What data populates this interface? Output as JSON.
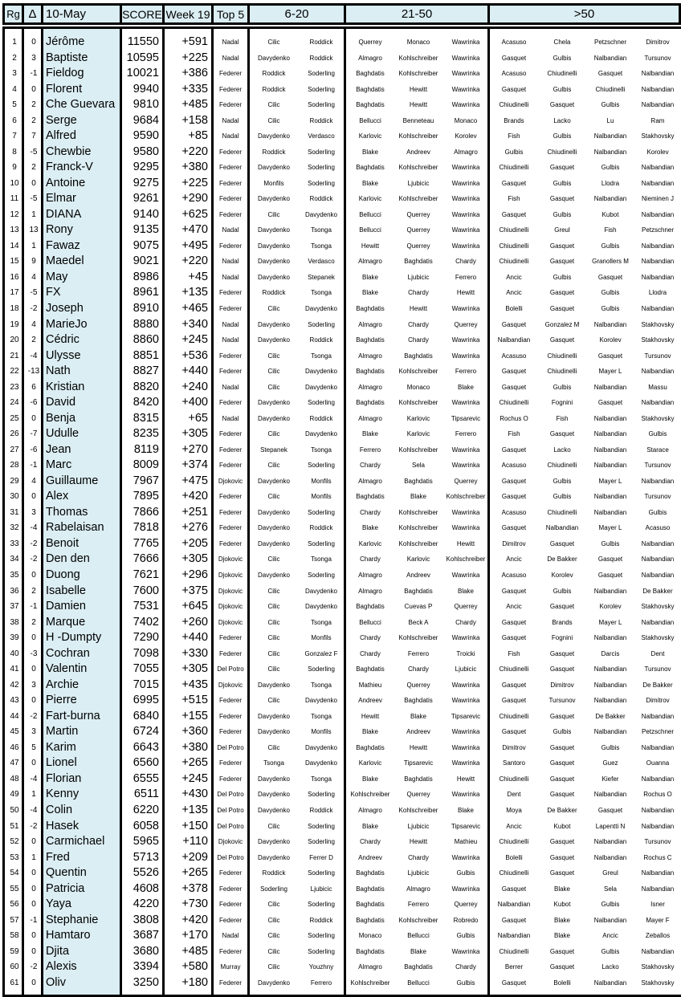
{
  "header": {
    "rank": "Rg",
    "delta": "Δ",
    "date": "10-May",
    "score": "SCORE",
    "week": "Week 19",
    "top5": "Top 5",
    "group_6_20": "6-20",
    "group_21_50": "21-50",
    "group_50_plus": ">50"
  },
  "colors": {
    "header_bg": "#dbeef3",
    "name_col_bg": "#dbeef3",
    "border": "#000000"
  },
  "rows": [
    [
      "1",
      "0",
      "Jérôme",
      "11550",
      "+591",
      "Nadal",
      "Cilic",
      "Roddick",
      "Querrey",
      "Monaco",
      "Wawrinka",
      "Acasuso",
      "Chela",
      "Petzschner",
      "Dimitrov"
    ],
    [
      "2",
      "3",
      "Baptiste",
      "10595",
      "+225",
      "Nadal",
      "Davydenko",
      "Roddick",
      "Almagro",
      "Kohlschreiber",
      "Wawrinka",
      "Gasquet",
      "Gulbis",
      "Nalbandian",
      "Tursunov"
    ],
    [
      "3",
      "-1",
      "Fieldog",
      "10021",
      "+386",
      "Federer",
      "Roddick",
      "Soderling",
      "Baghdatis",
      "Kohlschreiber",
      "Wawrinka",
      "Acasuso",
      "Chiudinelli",
      "Gasquet",
      "Nalbandian"
    ],
    [
      "4",
      "0",
      "Florent",
      "9940",
      "+335",
      "Federer",
      "Roddick",
      "Soderling",
      "Baghdatis",
      "Hewitt",
      "Wawrinka",
      "Gasquet",
      "Gulbis",
      "Chiudinelli",
      "Nalbandian"
    ],
    [
      "5",
      "2",
      "Che Guevara",
      "9810",
      "+485",
      "Federer",
      "Cilic",
      "Soderling",
      "Baghdatis",
      "Hewitt",
      "Wawrinka",
      "Chiudinelli",
      "Gasquet",
      "Gulbis",
      "Nalbandian"
    ],
    [
      "6",
      "2",
      "Serge",
      "9684",
      "+158",
      "Nadal",
      "Cilic",
      "Roddick",
      "Bellucci",
      "Benneteau",
      "Monaco",
      "Brands",
      "Lacko",
      "Lu",
      "Ram"
    ],
    [
      "7",
      "7",
      "Alfred",
      "9590",
      "+85",
      "Nadal",
      "Davydenko",
      "Verdasco",
      "Karlovic",
      "Kohlschreiber",
      "Korolev",
      "Fish",
      "Gulbis",
      "Nalbandian",
      "Stakhovsky"
    ],
    [
      "8",
      "-5",
      "Chewbie",
      "9580",
      "+220",
      "Federer",
      "Roddick",
      "Soderling",
      "Blake",
      "Andreev",
      "Almagro",
      "Gulbis",
      "Chiudinelli",
      "Nalbandian",
      "Korolev"
    ],
    [
      "9",
      "2",
      "Franck-V",
      "9295",
      "+380",
      "Federer",
      "Davydenko",
      "Soderling",
      "Baghdatis",
      "Kohlschreiber",
      "Wawrinka",
      "Chiudinelli",
      "Gasquet",
      "Gulbis",
      "Nalbandian"
    ],
    [
      "10",
      "0",
      "Antoine",
      "9275",
      "+225",
      "Federer",
      "Monfils",
      "Soderling",
      "Blake",
      "Ljubicic",
      "Wawrinka",
      "Gasquet",
      "Gulbis",
      "Llodra",
      "Nalbandian"
    ],
    [
      "11",
      "-5",
      "Elmar",
      "9261",
      "+290",
      "Federer",
      "Davydenko",
      "Roddick",
      "Karlovic",
      "Kohlschreiber",
      "Wawrinka",
      "Fish",
      "Gasquet",
      "Nalbandian",
      "Nieminen J"
    ],
    [
      "12",
      "1",
      "DIANA",
      "9140",
      "+625",
      "Federer",
      "Cilic",
      "Davydenko",
      "Bellucci",
      "Querrey",
      "Wawrinka",
      "Gasquet",
      "Gulbis",
      "Kubot",
      "Nalbandian"
    ],
    [
      "13",
      "13",
      "Rony",
      "9135",
      "+470",
      "Nadal",
      "Davydenko",
      "Tsonga",
      "Bellucci",
      "Querrey",
      "Wawrinka",
      "Chiudinelli",
      "Greul",
      "Fish",
      "Petzschner"
    ],
    [
      "14",
      "1",
      "Fawaz",
      "9075",
      "+495",
      "Federer",
      "Davydenko",
      "Tsonga",
      "Hewitt",
      "Querrey",
      "Wawrinka",
      "Chiudinelli",
      "Gasquet",
      "Gulbis",
      "Nalbandian"
    ],
    [
      "15",
      "9",
      "Maedel",
      "9021",
      "+220",
      "Nadal",
      "Davydenko",
      "Verdasco",
      "Almagro",
      "Baghdatis",
      "Chardy",
      "Chiudinelli",
      "Gasquet",
      "Granollers M",
      "Nalbandian"
    ],
    [
      "16",
      "4",
      "May",
      "8986",
      "+45",
      "Nadal",
      "Davydenko",
      "Stepanek",
      "Blake",
      "Ljubicic",
      "Ferrero",
      "Ancic",
      "Gulbis",
      "Gasquet",
      "Nalbandian"
    ],
    [
      "17",
      "-5",
      "FX",
      "8961",
      "+135",
      "Federer",
      "Roddick",
      "Tsonga",
      "Blake",
      "Chardy",
      "Hewitt",
      "Ancic",
      "Gasquet",
      "Gulbis",
      "Llodra"
    ],
    [
      "18",
      "-2",
      "Joseph",
      "8910",
      "+465",
      "Federer",
      "Cilic",
      "Davydenko",
      "Baghdatis",
      "Hewitt",
      "Wawrinka",
      "Bolelli",
      "Gasquet",
      "Gulbis",
      "Nalbandian"
    ],
    [
      "19",
      "4",
      "MarieJo",
      "8880",
      "+340",
      "Nadal",
      "Davydenko",
      "Soderling",
      "Almagro",
      "Chardy",
      "Querrey",
      "Gasquet",
      "Gonzalez M",
      "Nalbandian",
      "Stakhovsky"
    ],
    [
      "20",
      "2",
      "Cédric",
      "8860",
      "+245",
      "Nadal",
      "Davydenko",
      "Roddick",
      "Baghdatis",
      "Chardy",
      "Wawrinka",
      "Nalbandian",
      "Gasquet",
      "Korolev",
      "Stakhovsky"
    ],
    [
      "21",
      "-4",
      "Ulysse",
      "8851",
      "+536",
      "Federer",
      "Cilic",
      "Tsonga",
      "Almagro",
      "Baghdatis",
      "Wawrinka",
      "Acasuso",
      "Chiudinelli",
      "Gasquet",
      "Tursunov"
    ],
    [
      "22",
      "-13",
      "Nath",
      "8827",
      "+440",
      "Federer",
      "Cilic",
      "Davydenko",
      "Baghdatis",
      "Kohlschreiber",
      "Ferrero",
      "Gasquet",
      "Chiudinelli",
      "Mayer L",
      "Nalbandian"
    ],
    [
      "23",
      "6",
      "Kristian",
      "8820",
      "+240",
      "Nadal",
      "Cilic",
      "Davydenko",
      "Almagro",
      "Monaco",
      "Blake",
      "Gasquet",
      "Gulbis",
      "Nalbandian",
      "Massu"
    ],
    [
      "24",
      "-6",
      "David",
      "8420",
      "+400",
      "Federer",
      "Davydenko",
      "Soderling",
      "Baghdatis",
      "Kohlschreiber",
      "Wawrinka",
      "Chiudinelli",
      "Fognini",
      "Gasquet",
      "Nalbandian"
    ],
    [
      "25",
      "0",
      "Benja",
      "8315",
      "+65",
      "Nadal",
      "Davydenko",
      "Roddick",
      "Almagro",
      "Karlovic",
      "Tipsarevic",
      "Rochus O",
      "Fish",
      "Nalbandian",
      "Stakhovsky"
    ],
    [
      "26",
      "-7",
      "Udulle",
      "8235",
      "+305",
      "Federer",
      "Cilic",
      "Davydenko",
      "Blake",
      "Karlovic",
      "Ferrero",
      "Fish",
      "Gasquet",
      "Nalbandian",
      "Gulbis"
    ],
    [
      "27",
      "-6",
      "Jean",
      "8119",
      "+270",
      "Federer",
      "Stepanek",
      "Tsonga",
      "Ferrero",
      "Kohlschreiber",
      "Wawrinka",
      "Gasquet",
      "Lacko",
      "Nalbandian",
      "Starace"
    ],
    [
      "28",
      "-1",
      "Marc",
      "8009",
      "+374",
      "Federer",
      "Cilic",
      "Soderling",
      "Chardy",
      "Sela",
      "Wawrinka",
      "Acasuso",
      "Chiudinelli",
      "Nalbandian",
      "Tursunov"
    ],
    [
      "29",
      "4",
      "Guillaume",
      "7967",
      "+475",
      "Djokovic",
      "Davydenko",
      "Monfils",
      "Almagro",
      "Baghdatis",
      "Querrey",
      "Gasquet",
      "Gulbis",
      "Mayer L",
      "Nalbandian"
    ],
    [
      "30",
      "0",
      "Alex",
      "7895",
      "+420",
      "Federer",
      "Cilic",
      "Monfils",
      "Baghdatis",
      "Blake",
      "Kohlschreiber",
      "Gasquet",
      "Gulbis",
      "Nalbandian",
      "Tursunov"
    ],
    [
      "31",
      "3",
      "Thomas",
      "7866",
      "+251",
      "Federer",
      "Davydenko",
      "Soderling",
      "Chardy",
      "Kohlschreiber",
      "Wawrinka",
      "Acasuso",
      "Chiudinelli",
      "Nalbandian",
      "Gulbis"
    ],
    [
      "32",
      "-4",
      "Rabelaisan",
      "7818",
      "+276",
      "Federer",
      "Davydenko",
      "Roddick",
      "Blake",
      "Kohlschreiber",
      "Wawrinka",
      "Gasquet",
      "Nalbandian",
      "Mayer L",
      "Acasuso"
    ],
    [
      "33",
      "-2",
      "Benoit",
      "7765",
      "+205",
      "Federer",
      "Davydenko",
      "Soderling",
      "Karlovic",
      "Kohlschreiber",
      "Hewitt",
      "Dimitrov",
      "Gasquet",
      "Gulbis",
      "Nalbandian"
    ],
    [
      "34",
      "-2",
      "Den den",
      "7666",
      "+305",
      "Djokovic",
      "Cilic",
      "Tsonga",
      "Chardy",
      "Karlovic",
      "Kohlschreiber",
      "Ancic",
      "De Bakker",
      "Gasquet",
      "Nalbandian"
    ],
    [
      "35",
      "0",
      "Duong",
      "7621",
      "+296",
      "Djokovic",
      "Davydenko",
      "Soderling",
      "Almagro",
      "Andreev",
      "Wawrinka",
      "Acasuso",
      "Korolev",
      "Gasquet",
      "Nalbandian"
    ],
    [
      "36",
      "2",
      "Isabelle",
      "7600",
      "+375",
      "Djokovic",
      "Cilic",
      "Davydenko",
      "Almagro",
      "Baghdatis",
      "Blake",
      "Gasquet",
      "Gulbis",
      "Nalbandian",
      "De Bakker"
    ],
    [
      "37",
      "-1",
      "Damien",
      "7531",
      "+645",
      "Djokovic",
      "Cilic",
      "Davydenko",
      "Baghdatis",
      "Cuevas P",
      "Querrey",
      "Ancic",
      "Gasquet",
      "Korolev",
      "Stakhovsky"
    ],
    [
      "38",
      "2",
      "Marque",
      "7402",
      "+260",
      "Djokovic",
      "Cilic",
      "Tsonga",
      "Bellucci",
      "Beck A",
      "Chardy",
      "Gasquet",
      "Brands",
      "Mayer L",
      "Nalbandian"
    ],
    [
      "39",
      "0",
      "H -Dumpty",
      "7290",
      "+440",
      "Federer",
      "Cilic",
      "Monfils",
      "Chardy",
      "Kohlschreiber",
      "Wawrinka",
      "Gasquet",
      "Fognini",
      "Nalbandian",
      "Stakhovsky"
    ],
    [
      "40",
      "-3",
      "Cochran",
      "7098",
      "+330",
      "Federer",
      "Cilic",
      "Gonzalez F",
      "Chardy",
      "Ferrero",
      "Troicki",
      "Fish",
      "Gasquet",
      "Darcis",
      "Dent"
    ],
    [
      "41",
      "0",
      "Valentin",
      "7055",
      "+305",
      "Del Potro",
      "Cilic",
      "Soderling",
      "Baghdatis",
      "Chardy",
      "Ljubicic",
      "Chiudinelli",
      "Gasquet",
      "Nalbandian",
      "Tursunov"
    ],
    [
      "42",
      "3",
      "Archie",
      "7015",
      "+435",
      "Djokovic",
      "Davydenko",
      "Tsonga",
      "Mathieu",
      "Querrey",
      "Wawrinka",
      "Gasquet",
      "Dimitrov",
      "Nalbandian",
      "De Bakker"
    ],
    [
      "43",
      "0",
      "Pierre",
      "6995",
      "+515",
      "Federer",
      "Cilic",
      "Davydenko",
      "Andreev",
      "Baghdatis",
      "Wawrinka",
      "Gasquet",
      "Tursunov",
      "Nalbandian",
      "Dimitrov"
    ],
    [
      "44",
      "-2",
      "Fart-burna",
      "6840",
      "+155",
      "Federer",
      "Davydenko",
      "Tsonga",
      "Hewitt",
      "Blake",
      "Tipsarevic",
      "Chiudinelli",
      "Gasquet",
      "De Bakker",
      "Nalbandian"
    ],
    [
      "45",
      "3",
      "Martin",
      "6724",
      "+360",
      "Federer",
      "Davydenko",
      "Monfils",
      "Blake",
      "Andreev",
      "Wawrinka",
      "Gasquet",
      "Gulbis",
      "Nalbandian",
      "Petzschner"
    ],
    [
      "46",
      "5",
      "Karim",
      "6643",
      "+380",
      "Del Potro",
      "Cilic",
      "Davydenko",
      "Baghdatis",
      "Hewitt",
      "Wawrinka",
      "Dimitrov",
      "Gasquet",
      "Gulbis",
      "Nalbandian"
    ],
    [
      "47",
      "0",
      "Lionel",
      "6560",
      "+265",
      "Federer",
      "Tsonga",
      "Davydenko",
      "Karlovic",
      "Tipsarevic",
      "Wawrinka",
      "Santoro",
      "Gasquet",
      "Guez",
      "Ouanna"
    ],
    [
      "48",
      "-4",
      "Florian",
      "6555",
      "+245",
      "Federer",
      "Davydenko",
      "Tsonga",
      "Blake",
      "Baghdatis",
      "Hewitt",
      "Chiudinelli",
      "Gasquet",
      "Kiefer",
      "Nalbandian"
    ],
    [
      "49",
      "1",
      "Kenny",
      "6511",
      "+430",
      "Del Potro",
      "Davydenko",
      "Soderling",
      "Kohlschreiber",
      "Querrey",
      "Wawrinka",
      "Dent",
      "Gasquet",
      "Nalbandian",
      "Rochus O"
    ],
    [
      "50",
      "-4",
      "Colin",
      "6220",
      "+135",
      "Del Potro",
      "Davydenko",
      "Roddick",
      "Almagro",
      "Kohlschreiber",
      "Blake",
      "Moya",
      "De Bakker",
      "Gasquet",
      "Nalbandian"
    ],
    [
      "51",
      "-2",
      "Hasek",
      "6058",
      "+150",
      "Del Potro",
      "Cilic",
      "Soderling",
      "Blake",
      "Ljubicic",
      "Tipsarevic",
      "Ancic",
      "Kubot",
      "Lapentti N",
      "Nalbandian"
    ],
    [
      "52",
      "0",
      "Carmichael",
      "5965",
      "+110",
      "Djokovic",
      "Davydenko",
      "Soderling",
      "Chardy",
      "Hewitt",
      "Mathieu",
      "Chiudinelli",
      "Gasquet",
      "Nalbandian",
      "Tursunov"
    ],
    [
      "53",
      "1",
      "Fred",
      "5713",
      "+209",
      "Del Potro",
      "Davydenko",
      "Ferrer D",
      "Andreev",
      "Chardy",
      "Wawrinka",
      "Bolelli",
      "Gasquet",
      "Nalbandian",
      "Rochus C"
    ],
    [
      "54",
      "0",
      "Quentin",
      "5526",
      "+265",
      "Federer",
      "Roddick",
      "Soderling",
      "Baghdatis",
      "Ljubicic",
      "Gulbis",
      "Chiudinelli",
      "Gasquet",
      "Greul",
      "Nalbandian"
    ],
    [
      "55",
      "0",
      "Patricia",
      "4608",
      "+378",
      "Federer",
      "Soderling",
      "Ljubicic",
      "Baghdatis",
      "Almagro",
      "Wawrinka",
      "Gasquet",
      "Blake",
      "Sela",
      "Nalbandian"
    ],
    [
      "56",
      "0",
      "Yaya",
      "4220",
      "+730",
      "Federer",
      "Cilic",
      "Soderling",
      "Baghdatis",
      "Ferrero",
      "Querrey",
      "Nalbandian",
      "Kubot",
      "Gulbis",
      "Isner"
    ],
    [
      "57",
      "-1",
      "Stephanie",
      "3808",
      "+420",
      "Federer",
      "Cilic",
      "Roddick",
      "Baghdatis",
      "Kohlschreiber",
      "Robredo",
      "Gasquet",
      "Blake",
      "Nalbandian",
      "Mayer F"
    ],
    [
      "58",
      "0",
      "Hamtaro",
      "3687",
      "+170",
      "Nadal",
      "Cilic",
      "Soderling",
      "Monaco",
      "Bellucci",
      "Gulbis",
      "Nalbandian",
      "Blake",
      "Ancic",
      "Zeballos"
    ],
    [
      "59",
      "0",
      "Djita",
      "3680",
      "+485",
      "Federer",
      "Cilic",
      "Soderling",
      "Baghdatis",
      "Blake",
      "Wawrinka",
      "Chiudinelli",
      "Gasquet",
      "Gulbis",
      "Nalbandian"
    ],
    [
      "60",
      "-2",
      "Alexis",
      "3394",
      "+580",
      "Murray",
      "Cilic",
      "Youzhny",
      "Almagro",
      "Baghdatis",
      "Chardy",
      "Berrer",
      "Gasquet",
      "Lacko",
      "Stakhovsky"
    ],
    [
      "61",
      "0",
      "Oliv",
      "3250",
      "+180",
      "Federer",
      "Davydenko",
      "Ferrero",
      "Kohlschreiber",
      "Bellucci",
      "Gulbis",
      "Gasquet",
      "Bolelli",
      "Nalbandian",
      "Stakhovsky"
    ]
  ]
}
